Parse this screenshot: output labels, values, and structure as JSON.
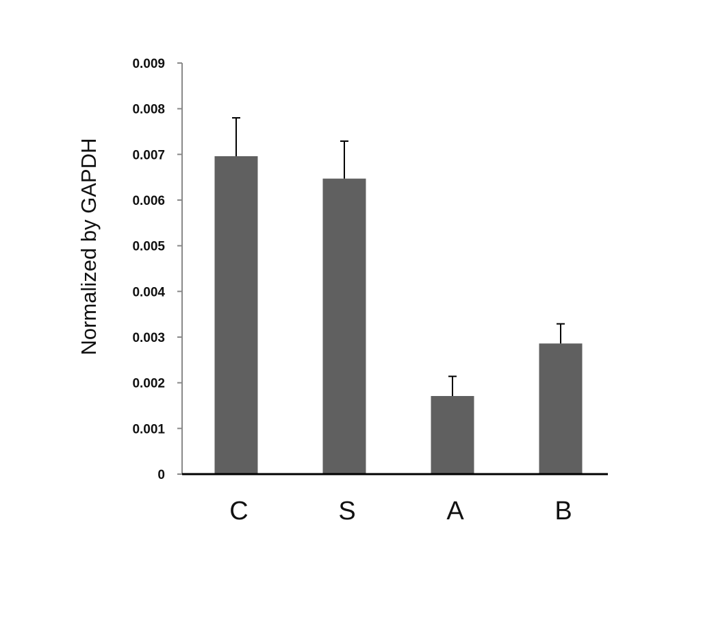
{
  "chart_data": {
    "type": "bar",
    "title": "",
    "xlabel": "",
    "ylabel": "Normalized by GAPDH",
    "categories": [
      "C",
      "S",
      "A",
      "B"
    ],
    "values": [
      0.00696,
      0.00647,
      0.00171,
      0.00286
    ],
    "error_upper": [
      0.00084,
      0.00082,
      0.00043,
      0.00043
    ],
    "ylim": [
      0,
      0.009
    ],
    "yticks": [
      "0",
      "0.001",
      "0.002",
      "0.003",
      "0.004",
      "0.005",
      "0.006",
      "0.007",
      "0.008",
      "0.009"
    ],
    "grid": false,
    "legend": "none",
    "bar_color": "#606060",
    "error_bar_color": "#000000"
  }
}
